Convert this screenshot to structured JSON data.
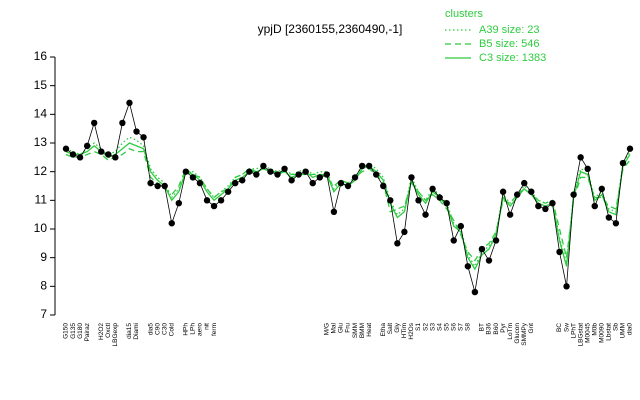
{
  "chart_data": {
    "type": "line",
    "title": "ypjD [2360155,2360490,-1]",
    "categories": [
      "G150",
      "G135",
      "G180",
      "Pairaz",
      null,
      "H2O2",
      "Oxctl",
      "LBGexp",
      null,
      "dia15",
      "Diami",
      null,
      "dia5",
      "C90",
      "C30",
      "Cold",
      null,
      "HPh",
      "LPh",
      "aero",
      "nit",
      "ferm",
      null,
      null,
      null,
      null,
      null,
      null,
      null,
      null,
      null,
      null,
      null,
      null,
      null,
      null,
      null,
      "M/G",
      "Mal",
      "Glu",
      "Fru",
      "SMM",
      "BMM",
      "Heat",
      null,
      "Etha",
      "Salt",
      "Gly",
      "HTim",
      "H2Os",
      "S1",
      "S2",
      "S3",
      "S4",
      "S5",
      "S6",
      "S7",
      "S8",
      null,
      "BT",
      "B36",
      "B60",
      "Pyr",
      "LoTm",
      "Glucon",
      "SMMPy",
      "Gnt",
      null,
      null,
      null,
      "BC",
      "Sw",
      "LPhT",
      "LBGstat",
      "M0045",
      "M0b",
      "M0090",
      "Lbstat",
      "Sb",
      "UMM",
      "dia0"
    ],
    "values": [
      12.8,
      12.6,
      12.5,
      12.9,
      13.7,
      12.7,
      12.6,
      12.5,
      13.7,
      14.4,
      13.4,
      13.2,
      11.6,
      11.5,
      11.5,
      10.2,
      10.9,
      12.0,
      11.8,
      11.6,
      11.0,
      10.8,
      11.0,
      11.3,
      11.6,
      11.7,
      12.0,
      11.9,
      12.2,
      12.0,
      11.9,
      12.1,
      11.7,
      11.9,
      12.0,
      11.6,
      11.8,
      11.9,
      10.6,
      11.6,
      11.5,
      11.8,
      12.2,
      12.2,
      11.9,
      11.5,
      11.0,
      9.5,
      9.9,
      11.8,
      11.0,
      10.5,
      11.4,
      11.1,
      10.9,
      9.6,
      10.1,
      8.7,
      7.8,
      9.3,
      8.9,
      9.6,
      11.3,
      10.5,
      11.2,
      11.6,
      11.3,
      10.8,
      10.7,
      10.9,
      9.2,
      8.0,
      11.2,
      12.5,
      12.1,
      10.8,
      11.4,
      10.4,
      10.2,
      12.3,
      12.8
    ],
    "color": "#000000",
    "series": [
      {
        "name": "A39 size: 23",
        "color": "#2ecc40",
        "dash": "dotted",
        "values": [
          12.8,
          12.7,
          12.6,
          12.8,
          13.0,
          12.8,
          12.6,
          12.7,
          13.0,
          13.2,
          13.1,
          12.9,
          12.1,
          11.8,
          11.6,
          11.1,
          11.4,
          12.0,
          12.0,
          11.8,
          11.4,
          11.1,
          11.3,
          11.5,
          11.8,
          11.9,
          12.1,
          12.1,
          12.2,
          12.1,
          12.0,
          12.1,
          11.9,
          12.0,
          12.1,
          11.9,
          12.0,
          12.0,
          11.4,
          11.7,
          11.6,
          11.8,
          12.2,
          12.3,
          12.1,
          11.8,
          11.0,
          10.5,
          10.7,
          11.8,
          11.3,
          11.0,
          11.4,
          11.2,
          10.9,
          10.2,
          10.0,
          9.1,
          8.7,
          9.2,
          9.4,
          9.9,
          11.2,
          10.9,
          11.2,
          11.5,
          11.3,
          11.0,
          10.9,
          11.0,
          9.7,
          8.8,
          11.2,
          12.1,
          12.0,
          11.1,
          11.3,
          10.7,
          10.6,
          12.3,
          12.7
        ]
      },
      {
        "name": "B5 size: 546",
        "color": "#2ecc40",
        "dash": "dashed",
        "values": [
          12.6,
          12.5,
          12.5,
          12.6,
          12.7,
          12.6,
          12.4,
          12.5,
          12.6,
          12.8,
          12.7,
          12.7,
          11.8,
          11.6,
          11.4,
          11.2,
          11.5,
          12.1,
          11.9,
          11.8,
          11.4,
          11.1,
          11.3,
          11.4,
          11.8,
          11.9,
          12.1,
          12.0,
          12.1,
          12.0,
          12.0,
          12.0,
          11.9,
          11.9,
          11.9,
          11.9,
          11.9,
          11.8,
          11.5,
          11.7,
          11.6,
          11.8,
          12.0,
          12.1,
          11.9,
          11.6,
          10.6,
          10.7,
          10.8,
          11.6,
          11.3,
          11.0,
          11.2,
          11.0,
          10.7,
          10.3,
          9.8,
          9.2,
          8.9,
          9.3,
          9.5,
          9.9,
          11.0,
          10.9,
          11.2,
          11.4,
          11.2,
          11.0,
          10.9,
          11.0,
          10.0,
          9.0,
          11.0,
          11.8,
          11.8,
          11.1,
          11.1,
          10.8,
          10.7,
          12.1,
          12.4
        ]
      },
      {
        "name": "C3 size: 1383",
        "color": "#2ecc40",
        "dash": "solid",
        "values": [
          12.7,
          12.6,
          12.6,
          12.7,
          12.9,
          12.7,
          12.5,
          12.6,
          12.8,
          13.0,
          12.9,
          12.8,
          12.0,
          11.7,
          11.5,
          11.0,
          11.3,
          12.0,
          11.9,
          11.7,
          11.3,
          11.0,
          11.2,
          11.4,
          11.7,
          11.8,
          12.0,
          12.0,
          12.1,
          12.0,
          11.9,
          12.0,
          11.8,
          11.9,
          12.0,
          11.8,
          11.9,
          11.9,
          11.3,
          11.6,
          11.5,
          11.7,
          12.1,
          12.2,
          12.0,
          11.7,
          10.9,
          10.4,
          10.6,
          11.7,
          11.2,
          10.9,
          11.3,
          11.1,
          10.8,
          10.1,
          9.9,
          9.0,
          8.6,
          9.1,
          9.3,
          9.8,
          11.1,
          10.8,
          11.1,
          11.4,
          11.2,
          10.9,
          10.8,
          10.9,
          9.6,
          8.7,
          11.1,
          12.0,
          11.9,
          11.0,
          11.2,
          10.6,
          10.5,
          12.2,
          12.6
        ]
      }
    ],
    "legend": {
      "title": "clusters",
      "position": "top-right"
    },
    "ylim": [
      7,
      16
    ],
    "yticks": [
      7,
      8,
      9,
      10,
      11,
      12,
      13,
      14,
      15,
      16
    ]
  }
}
